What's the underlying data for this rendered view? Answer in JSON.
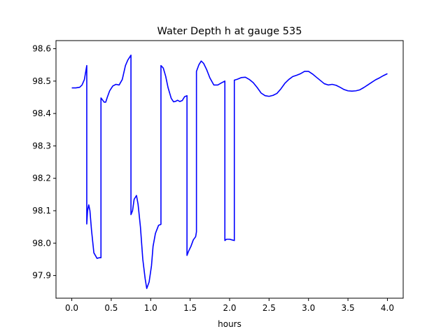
{
  "chart_data": {
    "type": "line",
    "title": "Water Depth h at gauge 535",
    "xlabel": "hours",
    "ylabel": "",
    "xlim": [
      -0.2,
      4.2
    ],
    "ylim": [
      97.83,
      98.625
    ],
    "xticks": [
      0.0,
      0.5,
      1.0,
      1.5,
      2.0,
      2.5,
      3.0,
      3.5,
      4.0
    ],
    "xtick_labels": [
      "0.0",
      "0.5",
      "1.0",
      "1.5",
      "2.0",
      "2.5",
      "3.0",
      "3.5",
      "4.0"
    ],
    "yticks": [
      97.9,
      98.0,
      98.1,
      98.2,
      98.3,
      98.4,
      98.5,
      98.6
    ],
    "ytick_labels": [
      "97.9",
      "98.0",
      "98.1",
      "98.2",
      "98.3",
      "98.4",
      "98.5",
      "98.6"
    ],
    "grid": false,
    "series": [
      {
        "color": "#0000ff",
        "x": [
          0.0,
          0.05,
          0.1,
          0.13,
          0.16,
          0.19,
          0.19,
          0.2,
          0.215,
          0.23,
          0.25,
          0.28,
          0.32,
          0.35,
          0.37,
          0.37,
          0.38,
          0.41,
          0.43,
          0.45,
          0.48,
          0.52,
          0.56,
          0.6,
          0.64,
          0.68,
          0.71,
          0.75,
          0.75,
          0.77,
          0.79,
          0.82,
          0.84,
          0.87,
          0.9,
          0.93,
          0.95,
          0.98,
          1.01,
          1.03,
          1.06,
          1.1,
          1.13,
          1.13,
          1.16,
          1.19,
          1.22,
          1.26,
          1.29,
          1.32,
          1.34,
          1.37,
          1.4,
          1.43,
          1.46,
          1.46,
          1.48,
          1.51,
          1.54,
          1.57,
          1.58,
          1.58,
          1.61,
          1.64,
          1.67,
          1.71,
          1.75,
          1.8,
          1.85,
          1.9,
          1.94,
          1.94,
          1.96,
          2.0,
          2.03,
          2.06,
          2.06,
          2.1,
          2.15,
          2.2,
          2.25,
          2.3,
          2.35,
          2.4,
          2.45,
          2.5,
          2.55,
          2.6,
          2.65,
          2.7,
          2.75,
          2.8,
          2.85,
          2.9,
          2.95,
          3.0,
          3.05,
          3.1,
          3.15,
          3.2,
          3.25,
          3.3,
          3.35,
          3.4,
          3.45,
          3.5,
          3.55,
          3.6,
          3.65,
          3.7,
          3.75,
          3.8,
          3.85,
          3.9,
          3.95,
          4.0
        ],
        "y": [
          98.479,
          98.479,
          98.481,
          98.488,
          98.505,
          98.548,
          98.059,
          98.1,
          98.118,
          98.1,
          98.04,
          97.97,
          97.953,
          97.955,
          97.955,
          98.448,
          98.445,
          98.435,
          98.435,
          98.45,
          98.47,
          98.485,
          98.49,
          98.488,
          98.505,
          98.548,
          98.565,
          98.58,
          98.088,
          98.1,
          98.135,
          98.147,
          98.12,
          98.05,
          97.95,
          97.89,
          97.86,
          97.88,
          97.93,
          97.99,
          98.03,
          98.055,
          98.058,
          98.548,
          98.54,
          98.515,
          98.48,
          98.447,
          98.436,
          98.438,
          98.441,
          98.437,
          98.44,
          98.452,
          98.455,
          97.962,
          97.975,
          97.99,
          98.01,
          98.02,
          98.035,
          98.53,
          98.55,
          98.562,
          98.555,
          98.535,
          98.51,
          98.488,
          98.488,
          98.495,
          98.5,
          98.008,
          98.012,
          98.012,
          98.01,
          98.008,
          98.503,
          98.506,
          98.511,
          98.512,
          98.505,
          98.495,
          98.48,
          98.463,
          98.455,
          98.453,
          98.456,
          98.462,
          98.476,
          98.493,
          98.505,
          98.514,
          98.518,
          98.523,
          98.53,
          98.53,
          98.522,
          98.512,
          98.502,
          98.492,
          98.488,
          98.49,
          98.487,
          98.481,
          98.474,
          98.47,
          98.469,
          98.47,
          98.473,
          98.48,
          98.488,
          98.496,
          98.504,
          98.51,
          98.517,
          98.523
        ]
      }
    ]
  }
}
